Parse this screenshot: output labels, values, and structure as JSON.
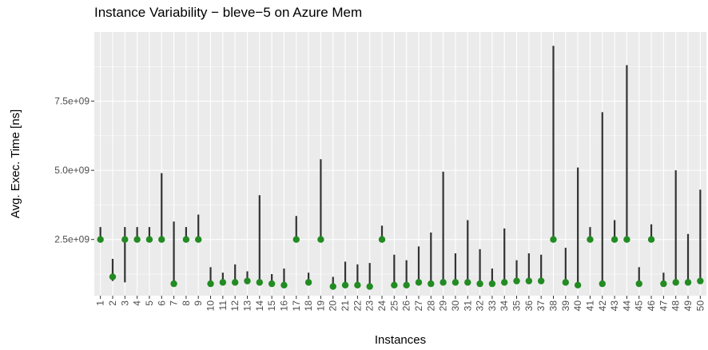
{
  "chart_data": {
    "type": "range",
    "title": "Instance Variability − bleve−5 on Azure Mem",
    "x_label": "Instances",
    "y_label": "Avg. Exec. Time [ns]",
    "categories": [
      "1",
      "2",
      "3",
      "4",
      "5",
      "6",
      "7",
      "8",
      "9",
      "10",
      "11",
      "12",
      "13",
      "14",
      "15",
      "16",
      "17",
      "18",
      "19",
      "20",
      "21",
      "22",
      "23",
      "24",
      "25",
      "26",
      "27",
      "28",
      "29",
      "30",
      "31",
      "32",
      "33",
      "34",
      "35",
      "36",
      "37",
      "38",
      "39",
      "40",
      "41",
      "42",
      "43",
      "44",
      "45",
      "46",
      "47",
      "48",
      "49",
      "50"
    ],
    "values": [
      2500000000.0,
      1150000000.0,
      2500000000.0,
      2500000000.0,
      2500000000.0,
      2500000000.0,
      900000000.0,
      2500000000.0,
      2500000000.0,
      900000000.0,
      950000000.0,
      950000000.0,
      1000000000.0,
      950000000.0,
      900000000.0,
      850000000.0,
      2500000000.0,
      950000000.0,
      2500000000.0,
      800000000.0,
      850000000.0,
      850000000.0,
      800000000.0,
      2500000000.0,
      850000000.0,
      850000000.0,
      950000000.0,
      900000000.0,
      950000000.0,
      950000000.0,
      950000000.0,
      900000000.0,
      900000000.0,
      950000000.0,
      1000000000.0,
      1000000000.0,
      1000000000.0,
      2500000000.0,
      950000000.0,
      850000000.0,
      2500000000.0,
      900000000.0,
      2500000000.0,
      2500000000.0,
      900000000.0,
      2500000000.0,
      900000000.0,
      950000000.0,
      950000000.0,
      1000000000.0
    ],
    "min": [
      2450000000.0,
      1000000000.0,
      950000000.0,
      2450000000.0,
      2450000000.0,
      2450000000.0,
      900000000.0,
      2450000000.0,
      2450000000.0,
      900000000.0,
      950000000.0,
      950000000.0,
      1000000000.0,
      950000000.0,
      900000000.0,
      850000000.0,
      2450000000.0,
      950000000.0,
      2450000000.0,
      800000000.0,
      850000000.0,
      850000000.0,
      800000000.0,
      2450000000.0,
      850000000.0,
      850000000.0,
      950000000.0,
      900000000.0,
      950000000.0,
      950000000.0,
      950000000.0,
      900000000.0,
      900000000.0,
      950000000.0,
      1000000000.0,
      1000000000.0,
      1000000000.0,
      2450000000.0,
      950000000.0,
      850000000.0,
      2450000000.0,
      900000000.0,
      2450000000.0,
      2450000000.0,
      900000000.0,
      2450000000.0,
      900000000.0,
      950000000.0,
      950000000.0,
      1000000000.0
    ],
    "max": [
      2950000000.0,
      1800000000.0,
      2950000000.0,
      2950000000.0,
      2950000000.0,
      4900000000.0,
      3150000000.0,
      2950000000.0,
      3400000000.0,
      1500000000.0,
      1300000000.0,
      1600000000.0,
      1350000000.0,
      4100000000.0,
      1250000000.0,
      1450000000.0,
      3350000000.0,
      1300000000.0,
      5400000000.0,
      1150000000.0,
      1700000000.0,
      1600000000.0,
      1650000000.0,
      3000000000.0,
      1950000000.0,
      1750000000.0,
      2250000000.0,
      2750000000.0,
      4950000000.0,
      2000000000.0,
      3200000000.0,
      2150000000.0,
      1450000000.0,
      2900000000.0,
      1750000000.0,
      2000000000.0,
      1950000000.0,
      9500000000.0,
      2200000000.0,
      5100000000.0,
      2950000000.0,
      7100000000.0,
      3200000000.0,
      8800000000.0,
      1500000000.0,
      3050000000.0,
      1300000000.0,
      5000000000.0,
      2700000000.0,
      4300000000.0
    ],
    "color": "#228b22",
    "line_color": "#333333",
    "ylim": [
      470000000.0,
      10000000000.0
    ],
    "yticks": [
      {
        "value": 2500000000.0,
        "label": "2.5e+09"
      },
      {
        "value": 5000000000.0,
        "label": "5.0e+09"
      },
      {
        "value": 7500000000.0,
        "label": "7.5e+09"
      }
    ],
    "grid": true
  }
}
